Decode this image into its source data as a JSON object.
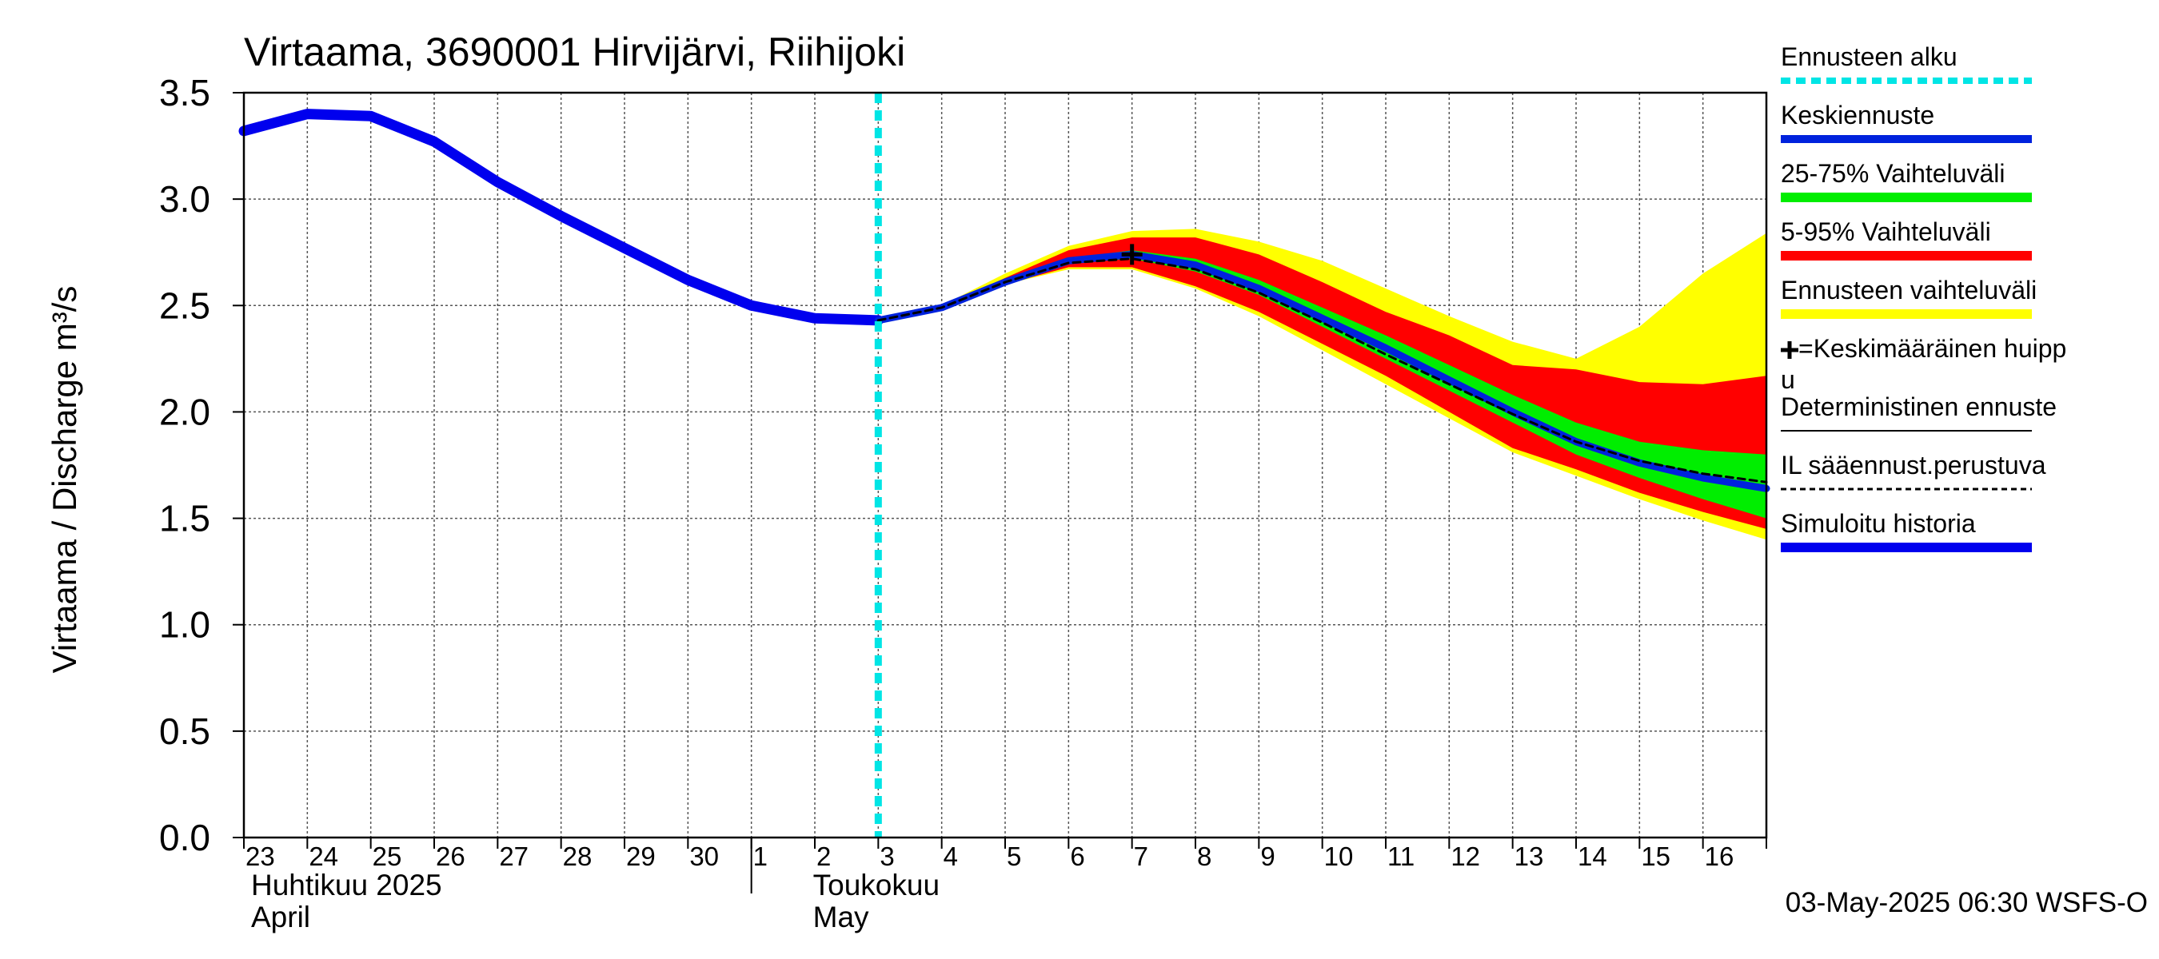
{
  "chart_data": {
    "type": "area",
    "title": "Virtaama, 3690001 Hirvijärvi, Riihijoki",
    "ylabel": "Virtaama / Discharge    m³/s",
    "ylim": [
      0,
      3.5
    ],
    "yticks": [
      "0.0",
      "0.5",
      "1.0",
      "1.5",
      "2.0",
      "2.5",
      "3.0",
      "3.5"
    ],
    "ytick_values": [
      0,
      0.5,
      1.0,
      1.5,
      2.0,
      2.5,
      3.0,
      3.5
    ],
    "xlim": [
      "2025-04-23",
      "2025-05-17"
    ],
    "x_day_labels": [
      "23",
      "24",
      "25",
      "26",
      "27",
      "28",
      "29",
      "30",
      "1",
      "2",
      "3",
      "4",
      "5",
      "6",
      "7",
      "8",
      "9",
      "10",
      "11",
      "12",
      "13",
      "14",
      "15",
      "16"
    ],
    "month_labels": [
      {
        "line1": "Huhtikuu  2025",
        "line2": "April",
        "start": "2025-04-23"
      },
      {
        "line1": "Toukokuu",
        "line2": "May",
        "start": "2025-05-01"
      }
    ],
    "forecast_start": "2025-05-03",
    "timestamp": "03-May-2025 06:30 WSFS-O",
    "history": {
      "x": [
        "2025-04-23",
        "2025-04-24",
        "2025-04-25",
        "2025-04-26",
        "2025-04-27",
        "2025-04-28",
        "2025-04-29",
        "2025-04-30",
        "2025-05-01",
        "2025-05-02",
        "2025-05-03"
      ],
      "y": [
        3.32,
        3.4,
        3.39,
        3.27,
        3.08,
        2.92,
        2.77,
        2.62,
        2.5,
        2.44,
        2.43
      ]
    },
    "forecast": {
      "x": [
        "2025-05-03",
        "2025-05-04",
        "2025-05-05",
        "2025-05-06",
        "2025-05-07",
        "2025-05-08",
        "2025-05-09",
        "2025-05-10",
        "2025-05-11",
        "2025-05-12",
        "2025-05-13",
        "2025-05-14",
        "2025-05-15",
        "2025-05-16",
        "2025-05-17"
      ],
      "mean": [
        2.43,
        2.49,
        2.61,
        2.71,
        2.74,
        2.69,
        2.58,
        2.44,
        2.3,
        2.15,
        2.0,
        1.86,
        1.76,
        1.69,
        1.64
      ],
      "deterministic": [
        2.43,
        2.49,
        2.61,
        2.7,
        2.72,
        2.67,
        2.56,
        2.42,
        2.27,
        2.13,
        1.99,
        1.86,
        1.77,
        1.71,
        1.67
      ],
      "p25": [
        2.43,
        2.49,
        2.61,
        2.7,
        2.72,
        2.66,
        2.55,
        2.4,
        2.25,
        2.1,
        1.95,
        1.8,
        1.69,
        1.59,
        1.5
      ],
      "p75": [
        2.43,
        2.49,
        2.61,
        2.72,
        2.76,
        2.72,
        2.62,
        2.49,
        2.36,
        2.22,
        2.08,
        1.95,
        1.86,
        1.82,
        1.8
      ],
      "p5": [
        2.43,
        2.49,
        2.6,
        2.68,
        2.68,
        2.59,
        2.47,
        2.32,
        2.17,
        2.0,
        1.83,
        1.73,
        1.62,
        1.53,
        1.45
      ],
      "p95": [
        2.43,
        2.49,
        2.63,
        2.76,
        2.82,
        2.82,
        2.74,
        2.61,
        2.47,
        2.36,
        2.22,
        2.2,
        2.14,
        2.13,
        2.17
      ],
      "min": [
        2.43,
        2.49,
        2.6,
        2.67,
        2.67,
        2.58,
        2.45,
        2.29,
        2.13,
        1.97,
        1.81,
        1.7,
        1.59,
        1.49,
        1.4
      ],
      "max": [
        2.43,
        2.5,
        2.65,
        2.78,
        2.85,
        2.86,
        2.8,
        2.71,
        2.58,
        2.45,
        2.33,
        2.25,
        2.4,
        2.65,
        2.84
      ]
    },
    "peak": {
      "x": "2025-05-07",
      "y": 2.74
    },
    "colors": {
      "history": "#0000ee",
      "mean": "#0022dd",
      "p25_75": "#00ee00",
      "p5_95": "#ff0000",
      "range": "#ffff00",
      "forecast_start": "#00e5e5",
      "grid": "#555555",
      "deterministic": "#000000"
    },
    "legend": [
      {
        "key": "start",
        "label": "Ennusteen alku"
      },
      {
        "key": "mean",
        "label": "Keskiennuste"
      },
      {
        "key": "p25_75",
        "label": "25-75% Vaihteluväli"
      },
      {
        "key": "p5_95",
        "label": "5-95% Vaihteluväli"
      },
      {
        "key": "range",
        "label": "Ennusteen vaihteluväli"
      },
      {
        "key": "peak",
        "label": "=Keskimääräinen huipp",
        "label2": "u"
      },
      {
        "key": "deterministic",
        "label": "Deterministinen ennuste"
      },
      {
        "key": "il",
        "label": "IL sääennust.perustuva"
      },
      {
        "key": "history",
        "label": "Simuloitu historia"
      }
    ]
  }
}
